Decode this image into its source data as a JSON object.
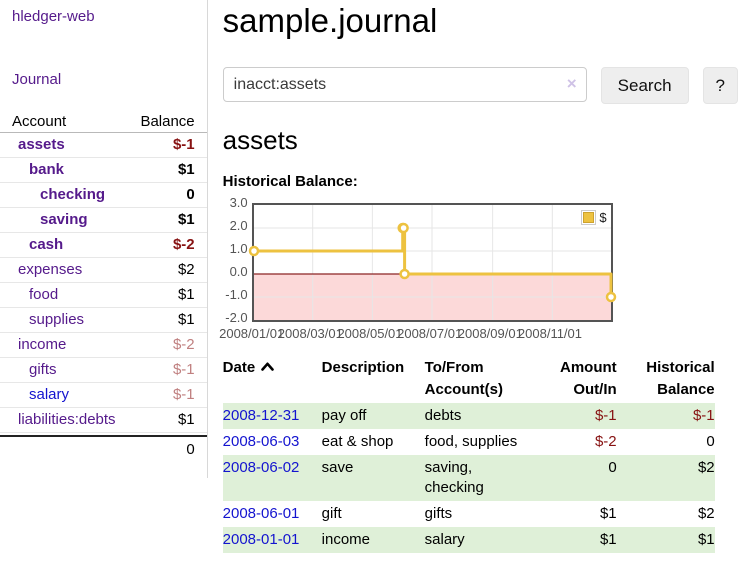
{
  "app": {
    "brand": "hledger-web",
    "nav_journal": "Journal"
  },
  "sidebar": {
    "accounts_header": {
      "account": "Account",
      "balance": "Balance"
    },
    "accounts": [
      {
        "name": "assets",
        "depth": 0,
        "balance": "$-1",
        "in_acct": true,
        "visited": true
      },
      {
        "name": "bank",
        "depth": 1,
        "balance": "$1",
        "in_acct": true,
        "visited": true
      },
      {
        "name": "checking",
        "depth": 2,
        "balance": "0",
        "in_acct": true,
        "visited": true
      },
      {
        "name": "saving",
        "depth": 2,
        "balance": "$1",
        "in_acct": true,
        "visited": true
      },
      {
        "name": "cash",
        "depth": 1,
        "balance": "$-2",
        "in_acct": true,
        "visited": true
      },
      {
        "name": "expenses",
        "depth": 0,
        "balance": "$2",
        "in_acct": false,
        "visited": true
      },
      {
        "name": "food",
        "depth": 1,
        "balance": "$1",
        "in_acct": false,
        "visited": true
      },
      {
        "name": "supplies",
        "depth": 1,
        "balance": "$1",
        "in_acct": false,
        "visited": true
      },
      {
        "name": "income",
        "depth": 0,
        "balance": "$-2",
        "in_acct": false,
        "visited": true
      },
      {
        "name": "gifts",
        "depth": 1,
        "balance": "$-1",
        "in_acct": false,
        "visited": true
      },
      {
        "name": "salary",
        "depth": 1,
        "balance": "$-1",
        "in_acct": false,
        "visited": false
      },
      {
        "name": "liabilities:debts",
        "depth": 0,
        "balance": "$1",
        "in_acct": false,
        "visited": true
      }
    ],
    "total": "0"
  },
  "header": {
    "title": "sample.journal"
  },
  "search": {
    "query": "inacct:assets",
    "clear_label": "×",
    "button": "Search",
    "help_button": "?"
  },
  "account_page": {
    "heading": "assets",
    "chart_label": "Historical Balance:"
  },
  "chart_data": {
    "type": "line",
    "mode": "steps",
    "title": "Historical Balance",
    "series": [
      {
        "name": "$",
        "color": "#EDC240",
        "points": [
          [
            "2008-01-01",
            1
          ],
          [
            "2008-06-01",
            2
          ],
          [
            "2008-06-02",
            2
          ],
          [
            "2008-06-03",
            0
          ],
          [
            "2008-12-31",
            -1
          ]
        ]
      }
    ],
    "x_range_days": [
      "2008/01/01",
      "2008/12/31"
    ],
    "x_ticks": [
      "2008/01/01",
      "2008/03/01",
      "2008/05/01",
      "2008/07/01",
      "2008/09/01",
      "2008/11/01"
    ],
    "y_ticks": [
      3.0,
      2.0,
      1.0,
      0.0,
      -1.0,
      -2.0
    ],
    "ylim": [
      -2.0,
      3.0
    ],
    "grid": true,
    "legend_position": "top-right",
    "gridline_color": "#e6e6e6",
    "negative_region_color": "#fcd9d9",
    "zero_line_color": "#8b2424"
  },
  "register": {
    "columns": [
      "Date",
      "Description",
      "To/From Account(s)",
      "Amount Out/In",
      "Historical Balance"
    ],
    "sorted_column": "Date",
    "sort_direction": "ascending",
    "rows": [
      {
        "date": "2008-12-31",
        "description": "pay off",
        "accounts": "debts",
        "amount": "$-1",
        "balance": "$-1"
      },
      {
        "date": "2008-06-03",
        "description": "eat & shop",
        "accounts": "food, supplies",
        "amount": "$-2",
        "balance": "0"
      },
      {
        "date": "2008-06-02",
        "description": "save",
        "accounts": "saving, checking",
        "amount": "0",
        "balance": "$2"
      },
      {
        "date": "2008-06-01",
        "description": "gift",
        "accounts": "gifts",
        "amount": "$1",
        "balance": "$2"
      },
      {
        "date": "2008-01-01",
        "description": "income",
        "accounts": "salary",
        "amount": "$1",
        "balance": "$1"
      }
    ]
  },
  "colors": {
    "link_purple": "#551A8B",
    "link_blue": "#1414cf",
    "negative": "#871212",
    "negative_faded": "#c08080",
    "row_stripe_green": "#dff0d8",
    "series_yellow": "#EDC240"
  }
}
